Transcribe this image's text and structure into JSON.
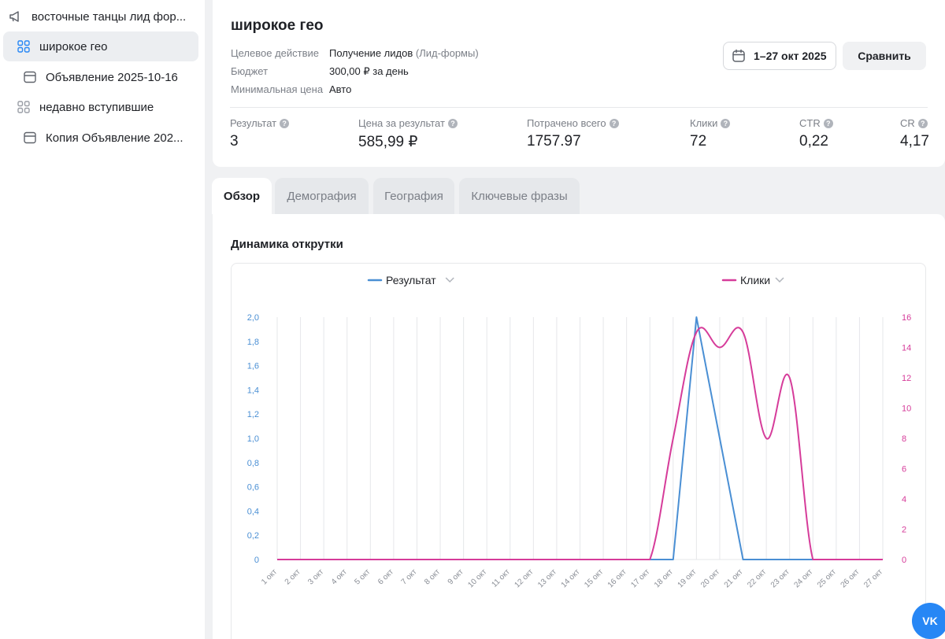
{
  "sidebar": {
    "items": [
      {
        "label": "восточные танцы лид фор...",
        "icon": "megaphone-icon"
      },
      {
        "label": "широкое гео",
        "icon": "adgroup-grid-icon",
        "active": true
      },
      {
        "label": "Объявление 2025-10-16",
        "icon": "ad-card-icon"
      },
      {
        "label": "недавно вступившие",
        "icon": "adgroup-grid-icon"
      },
      {
        "label": "Копия Объявление 202...",
        "icon": "ad-card-icon"
      }
    ]
  },
  "header": {
    "title": "широкое гео",
    "meta": [
      {
        "label": "Целевое действие",
        "value": "Получение лидов",
        "extra": "(Лид-формы)"
      },
      {
        "label": "Бюджет",
        "value": "300,00 ₽ за день",
        "extra": ""
      },
      {
        "label": "Минимальная цена",
        "value": "Авто",
        "extra": ""
      }
    ],
    "date_range": "1–27 окт 2025",
    "compare_label": "Сравнить",
    "metrics": [
      {
        "label": "Результат",
        "value": "3"
      },
      {
        "label": "Цена за результат",
        "value": "585,99 ₽"
      },
      {
        "label": "Потрачено всего",
        "value": "1757.97"
      },
      {
        "label": "Клики",
        "value": "72"
      },
      {
        "label": "CTR",
        "value": "0,22"
      },
      {
        "label": "CR",
        "value": "4,17"
      }
    ]
  },
  "tabs": [
    {
      "label": "Обзор",
      "active": true
    },
    {
      "label": "Демография",
      "active": false
    },
    {
      "label": "География",
      "active": false
    },
    {
      "label": "Ключевые фразы",
      "active": false
    }
  ],
  "section_title": "Динамика открутки",
  "colors": {
    "accent": "#2787f5",
    "result_series": "#4a8fd4",
    "clicks_series": "#d63c9a"
  },
  "chart_data": {
    "type": "line",
    "x": [
      "1 окт",
      "2 окт",
      "3 окт",
      "4 окт",
      "5 окт",
      "6 окт",
      "7 окт",
      "8 окт",
      "9 окт",
      "10 окт",
      "11 окт",
      "12 окт",
      "13 окт",
      "14 окт",
      "15 окт",
      "16 окт",
      "17 окт",
      "18 окт",
      "19 окт",
      "20 окт",
      "21 окт",
      "22 окт",
      "23 окт",
      "24 окт",
      "25 окт",
      "26 окт",
      "27 окт"
    ],
    "series": [
      {
        "name": "Результат",
        "axis": "left",
        "color": "#4a8fd4",
        "values": [
          0,
          0,
          0,
          0,
          0,
          0,
          0,
          0,
          0,
          0,
          0,
          0,
          0,
          0,
          0,
          0,
          0,
          0,
          2,
          1,
          0,
          0,
          0,
          0,
          0,
          0,
          0
        ]
      },
      {
        "name": "Клики",
        "axis": "right",
        "color": "#d63c9a",
        "values": [
          0,
          0,
          0,
          0,
          0,
          0,
          0,
          0,
          0,
          0,
          0,
          0,
          0,
          0,
          0,
          0,
          0,
          8,
          15,
          14,
          15,
          8,
          12,
          0,
          0,
          0,
          0
        ]
      }
    ],
    "y_left": {
      "range": [
        0,
        2
      ],
      "ticks": [
        "0",
        "0,2",
        "0,4",
        "0,6",
        "0,8",
        "1,0",
        "1,2",
        "1,4",
        "1,6",
        "1,8",
        "2,0"
      ]
    },
    "y_right": {
      "range": [
        0,
        16
      ],
      "ticks": [
        "0",
        "2",
        "4",
        "6",
        "8",
        "10",
        "12",
        "14",
        "16"
      ]
    },
    "grid": "vertical",
    "legend": "top"
  }
}
